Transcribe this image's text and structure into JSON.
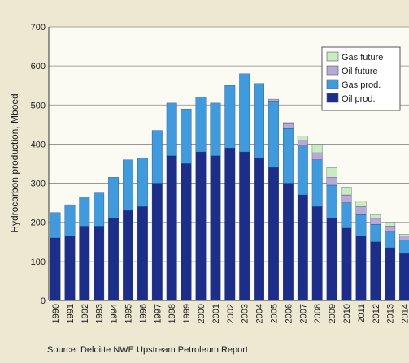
{
  "chart_data": {
    "type": "bar",
    "stacked": true,
    "ylabel": "Hydrocarbon production, Mboed",
    "ylim": [
      0,
      700
    ],
    "yticks": [
      0,
      100,
      200,
      300,
      400,
      500,
      600,
      700
    ],
    "grid": true,
    "legend_position": "top-right",
    "categories": [
      "1990",
      "1991",
      "1992",
      "1993",
      "1994",
      "1995",
      "1996",
      "1997",
      "1998",
      "1999",
      "2000",
      "2001",
      "2002",
      "2003",
      "2004",
      "2005",
      "2006",
      "2007",
      "2008",
      "2009",
      "2010",
      "2011",
      "2012",
      "2013",
      "2014"
    ],
    "series": [
      {
        "name": "Oil prod.",
        "color": "#1c2e8c",
        "values": [
          160,
          165,
          190,
          190,
          210,
          230,
          240,
          300,
          370,
          350,
          380,
          370,
          390,
          380,
          365,
          340,
          300,
          270,
          240,
          210,
          185,
          165,
          150,
          135,
          120
        ]
      },
      {
        "name": "Gas prod.",
        "color": "#3f9be0",
        "values": [
          65,
          80,
          75,
          85,
          105,
          130,
          125,
          135,
          135,
          140,
          140,
          135,
          160,
          200,
          190,
          170,
          140,
          125,
          120,
          85,
          65,
          55,
          45,
          40,
          35
        ]
      },
      {
        "name": "Oil future",
        "color": "#b7a9d8",
        "values": [
          0,
          0,
          0,
          0,
          0,
          0,
          0,
          0,
          0,
          0,
          0,
          0,
          0,
          0,
          0,
          5,
          12,
          15,
          18,
          20,
          20,
          20,
          15,
          15,
          10
        ]
      },
      {
        "name": "Gas future",
        "color": "#c8ecc0",
        "values": [
          0,
          0,
          0,
          0,
          0,
          0,
          0,
          0,
          0,
          0,
          0,
          0,
          0,
          0,
          0,
          0,
          3,
          10,
          22,
          25,
          20,
          15,
          10,
          10,
          5
        ]
      }
    ],
    "legend_order": [
      "Gas future",
      "Oil future",
      "Gas prod.",
      "Oil prod."
    ]
  },
  "source": "Source: Deloitte NWE Upstream Petroleum Report"
}
